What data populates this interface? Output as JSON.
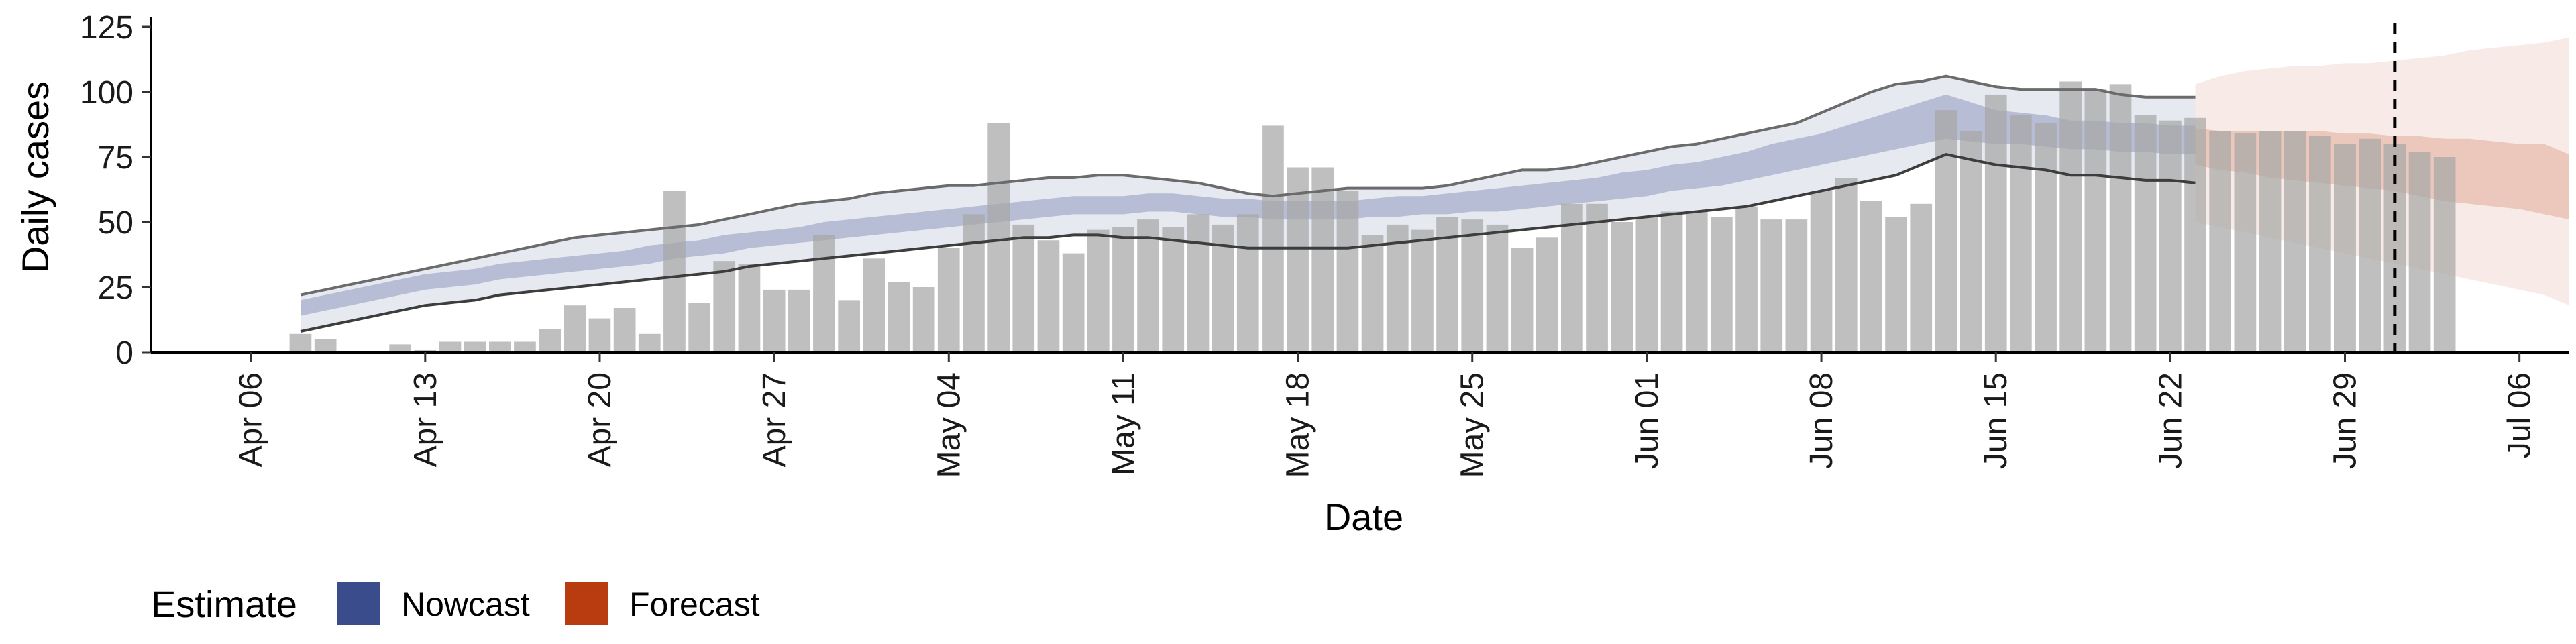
{
  "chart_data": {
    "type": "bar",
    "title": "",
    "xlabel": "Date",
    "ylabel": "Daily cases",
    "ylim": [
      0,
      125
    ],
    "yticks": [
      0,
      25,
      50,
      75,
      100,
      125
    ],
    "xlim": [
      "2020-04-02",
      "2020-07-08"
    ],
    "xticks": [
      {
        "date": "2020-04-06",
        "label": "Apr 06"
      },
      {
        "date": "2020-04-13",
        "label": "Apr 13"
      },
      {
        "date": "2020-04-20",
        "label": "Apr 20"
      },
      {
        "date": "2020-04-27",
        "label": "Apr 27"
      },
      {
        "date": "2020-05-04",
        "label": "May 04"
      },
      {
        "date": "2020-05-11",
        "label": "May 11"
      },
      {
        "date": "2020-05-18",
        "label": "May 18"
      },
      {
        "date": "2020-05-25",
        "label": "May 25"
      },
      {
        "date": "2020-06-01",
        "label": "Jun 01"
      },
      {
        "date": "2020-06-08",
        "label": "Jun 08"
      },
      {
        "date": "2020-06-15",
        "label": "Jun 15"
      },
      {
        "date": "2020-06-22",
        "label": "Jun 22"
      },
      {
        "date": "2020-06-29",
        "label": "Jun 29"
      },
      {
        "date": "2020-07-06",
        "label": "Jul 06"
      }
    ],
    "reference_line_date": "2020-07-01",
    "bar_color": "#a6a6a6",
    "nowcast_color": "#3b4c8c",
    "forecast_color": "#b83c0f",
    "observed": {
      "start_date": "2020-04-08",
      "values": [
        7,
        5,
        0,
        0,
        3,
        1,
        4,
        4,
        4,
        4,
        9,
        18,
        13,
        17,
        7,
        62,
        19,
        35,
        34,
        24,
        24,
        45,
        20,
        36,
        27,
        25,
        40,
        53,
        88,
        49,
        43,
        38,
        47,
        48,
        51,
        48,
        53,
        49,
        53,
        87,
        71,
        71,
        62,
        45,
        49,
        47,
        52,
        51,
        49,
        40,
        44,
        57,
        57,
        50,
        52,
        54,
        54,
        52,
        56,
        51,
        51,
        62,
        67,
        58,
        52,
        57,
        93,
        85,
        99,
        91,
        88,
        104,
        101,
        103,
        91,
        89,
        90,
        85,
        84,
        85,
        85,
        83,
        80,
        82,
        80,
        77,
        75
      ]
    },
    "nowcast": {
      "start_date": "2020-04-08",
      "inner_lower": [
        14,
        16,
        18,
        20,
        22,
        24,
        25,
        26,
        28,
        29,
        30,
        31,
        32,
        33,
        34,
        36,
        37,
        38,
        40,
        41,
        42,
        43,
        44,
        45,
        46,
        47,
        48,
        49,
        50,
        51,
        52,
        53,
        53,
        53,
        54,
        54,
        53,
        52,
        52,
        51,
        51,
        51,
        51,
        52,
        52,
        53,
        53,
        54,
        54,
        55,
        56,
        57,
        58,
        59,
        60,
        62,
        63,
        64,
        66,
        68,
        70,
        72,
        74,
        76,
        78,
        80,
        82,
        81,
        80,
        80,
        79,
        78,
        78,
        77,
        77,
        76,
        76
      ],
      "inner_upper": [
        20,
        22,
        24,
        26,
        28,
        30,
        31,
        32,
        34,
        35,
        36,
        37,
        38,
        39,
        41,
        42,
        43,
        45,
        46,
        47,
        48,
        50,
        51,
        52,
        53,
        54,
        55,
        56,
        57,
        58,
        59,
        60,
        60,
        60,
        61,
        61,
        60,
        59,
        59,
        58,
        58,
        58,
        58,
        59,
        60,
        60,
        61,
        62,
        63,
        64,
        65,
        66,
        67,
        69,
        70,
        72,
        73,
        75,
        77,
        80,
        82,
        84,
        87,
        90,
        93,
        96,
        99,
        96,
        93,
        92,
        91,
        89,
        89,
        88,
        88,
        87,
        87
      ],
      "outer_lower": [
        8,
        10,
        12,
        14,
        16,
        18,
        19,
        20,
        22,
        23,
        24,
        25,
        26,
        27,
        28,
        29,
        30,
        31,
        33,
        34,
        35,
        36,
        37,
        38,
        39,
        40,
        41,
        42,
        43,
        44,
        44,
        45,
        45,
        44,
        44,
        43,
        42,
        41,
        40,
        40,
        40,
        40,
        40,
        41,
        42,
        43,
        44,
        45,
        46,
        47,
        48,
        49,
        50,
        51,
        52,
        53,
        54,
        55,
        56,
        58,
        60,
        62,
        64,
        66,
        68,
        72,
        76,
        74,
        72,
        71,
        70,
        68,
        68,
        67,
        66,
        66,
        65
      ],
      "outer_upper": [
        22,
        24,
        26,
        28,
        30,
        32,
        34,
        36,
        38,
        40,
        42,
        44,
        45,
        46,
        47,
        48,
        49,
        51,
        53,
        55,
        57,
        58,
        59,
        61,
        62,
        63,
        64,
        64,
        65,
        66,
        67,
        67,
        68,
        68,
        67,
        66,
        65,
        63,
        61,
        60,
        61,
        62,
        63,
        63,
        63,
        63,
        64,
        66,
        68,
        70,
        70,
        71,
        73,
        75,
        77,
        79,
        80,
        82,
        84,
        86,
        88,
        92,
        96,
        100,
        103,
        104,
        106,
        104,
        102,
        101,
        101,
        101,
        101,
        99,
        98,
        98,
        98
      ]
    },
    "forecast": {
      "start_date": "2020-06-23",
      "inner_lower": [
        72,
        70,
        69,
        67,
        66,
        65,
        64,
        63,
        62,
        60,
        58,
        57,
        56,
        55,
        53,
        51
      ],
      "inner_upper": [
        86,
        85,
        85,
        85,
        85,
        85,
        84,
        84,
        83,
        83,
        82,
        82,
        81,
        80,
        80,
        76
      ],
      "outer_lower": [
        50,
        48,
        46,
        44,
        42,
        40,
        38,
        36,
        34,
        32,
        30,
        28,
        26,
        24,
        22,
        18
      ],
      "outer_upper": [
        103,
        106,
        108,
        109,
        110,
        110,
        111,
        111,
        112,
        113,
        114,
        116,
        117,
        118,
        119,
        121
      ]
    }
  },
  "legend": {
    "title": "Estimate",
    "placement": "bottom-left",
    "items": [
      {
        "label": "Nowcast",
        "color": "#3b4c8c"
      },
      {
        "label": "Forecast",
        "color": "#b83c0f"
      }
    ]
  }
}
